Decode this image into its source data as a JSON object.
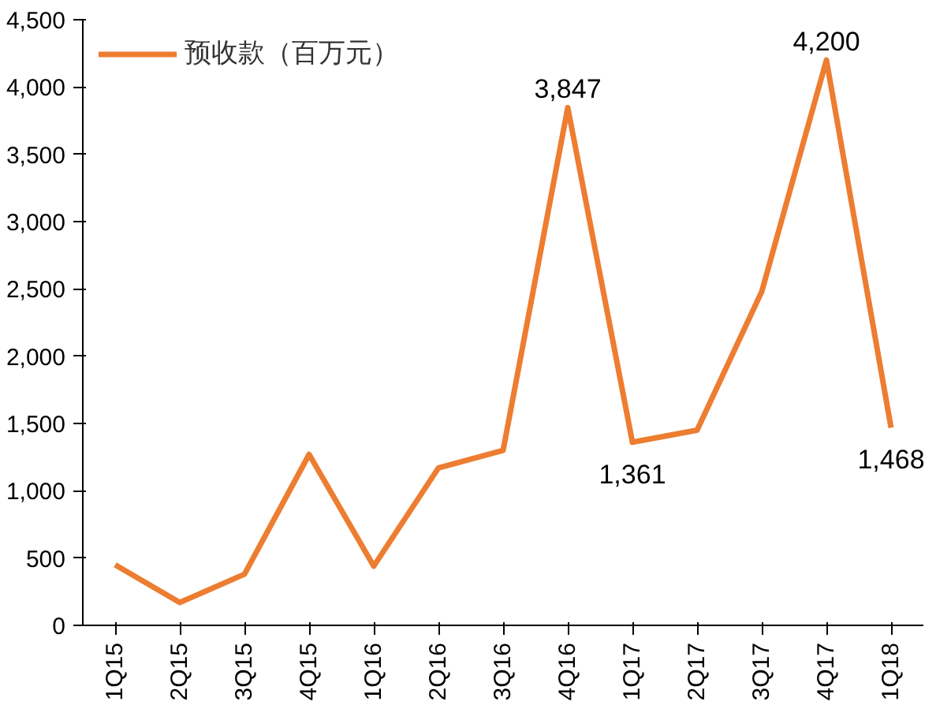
{
  "chart_data": {
    "type": "line",
    "categories": [
      "1Q15",
      "2Q15",
      "3Q15",
      "4Q15",
      "1Q16",
      "2Q16",
      "3Q16",
      "4Q16",
      "1Q17",
      "2Q17",
      "3Q17",
      "4Q17",
      "1Q18"
    ],
    "series": [
      {
        "name": "预收款（百万元）",
        "color": "#ed7d31",
        "values": [
          450,
          170,
          380,
          1270,
          440,
          1170,
          1300,
          3847,
          1361,
          1450,
          2480,
          4200,
          1468
        ],
        "value_labels": [
          null,
          null,
          null,
          null,
          null,
          null,
          null,
          "3,847",
          "1,361",
          null,
          null,
          "4,200",
          "1,468"
        ]
      }
    ],
    "ylim": [
      0,
      4500
    ],
    "yticks": [
      0,
      {
        "value": 500,
        "label": "500"
      },
      {
        "value": 1000,
        "label": "1,000"
      },
      {
        "value": 1500,
        "label": "1,500"
      },
      {
        "value": 2000,
        "label": "2,000"
      },
      {
        "value": 2500,
        "label": "2,500"
      },
      {
        "value": 3000,
        "label": "3,000"
      },
      {
        "value": 3500,
        "label": "3,500"
      },
      {
        "value": 4000,
        "label": "4,000"
      },
      {
        "value": 4500,
        "label": "4,500"
      }
    ],
    "grid": false,
    "legend": "top left",
    "marker": "none",
    "line_style": "solid"
  }
}
